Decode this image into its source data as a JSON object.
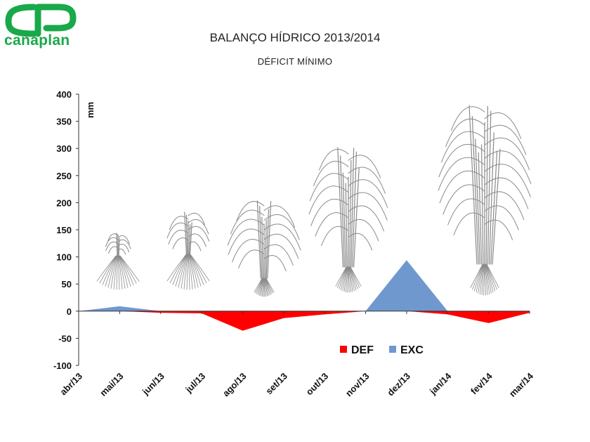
{
  "logo": {
    "text": "canaplan",
    "brand_color": "#19a84a"
  },
  "chart_data": {
    "type": "area",
    "title": "BALANÇO HÍDRICO 2013/2014",
    "subtitle": "DÉFICIT MÍNIMO",
    "ylabel": "mm",
    "xlabel": "",
    "ylim": [
      -100,
      400
    ],
    "yticks": [
      400,
      350,
      300,
      250,
      200,
      150,
      100,
      50,
      0,
      -50,
      -100
    ],
    "categories": [
      "abr/13",
      "mai/13",
      "jun/13",
      "jul/13",
      "ago/13",
      "set/13",
      "out/13",
      "nov/13",
      "dez/13",
      "jan/14",
      "fev/14",
      "mar/14"
    ],
    "grid": false,
    "legend_position": "bottom-right",
    "series": [
      {
        "name": "DEF",
        "color": "#ff0000",
        "values": [
          0,
          0,
          -3,
          -4,
          -36,
          -13,
          -6,
          0,
          0,
          -6,
          -22,
          -3
        ]
      },
      {
        "name": "EXC",
        "color": "#6f98cf",
        "values": [
          0,
          9,
          0,
          0,
          0,
          0,
          0,
          0,
          94,
          0,
          0,
          0
        ]
      }
    ]
  }
}
